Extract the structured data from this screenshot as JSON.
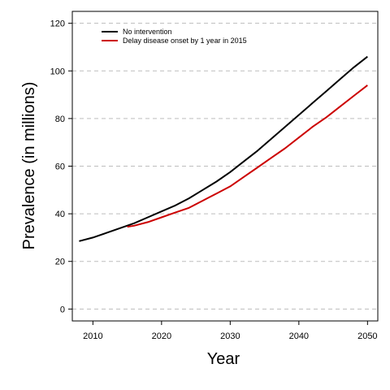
{
  "chart_data": {
    "type": "line",
    "title": "",
    "xlabel": "Year",
    "ylabel": "Prevalence (in millions)",
    "xlim": [
      2007,
      2051.5
    ],
    "ylim": [
      -5,
      125
    ],
    "xticks": [
      2010,
      2020,
      2030,
      2040,
      2050
    ],
    "yticks": [
      0,
      20,
      40,
      60,
      80,
      100,
      120
    ],
    "grid": "horizontal-dashed",
    "legend_position": "top-left",
    "series": [
      {
        "name": "No intervention",
        "color": "#000000",
        "x": [
          2008,
          2010,
          2012,
          2014,
          2016,
          2018,
          2020,
          2022,
          2024,
          2026,
          2028,
          2030,
          2032,
          2034,
          2036,
          2038,
          2040,
          2042,
          2044,
          2046,
          2048,
          2050
        ],
        "y": [
          28.5,
          30.0,
          32.0,
          34.0,
          36.0,
          38.5,
          41.0,
          43.5,
          46.5,
          50.0,
          53.5,
          57.5,
          62.0,
          66.5,
          71.5,
          76.5,
          81.5,
          86.5,
          91.5,
          96.5,
          101.5,
          106.0
        ]
      },
      {
        "name": "Delay disease onset by 1 year in 2015",
        "color": "#cc0000",
        "x": [
          2015,
          2016,
          2018,
          2020,
          2022,
          2024,
          2026,
          2028,
          2030,
          2032,
          2034,
          2036,
          2038,
          2040,
          2042,
          2044,
          2046,
          2048,
          2050
        ],
        "y": [
          34.5,
          35.0,
          36.5,
          38.5,
          40.5,
          42.5,
          45.5,
          48.5,
          51.5,
          55.5,
          59.5,
          63.5,
          67.5,
          72.0,
          76.5,
          80.5,
          85.0,
          89.5,
          94.0
        ]
      }
    ]
  }
}
